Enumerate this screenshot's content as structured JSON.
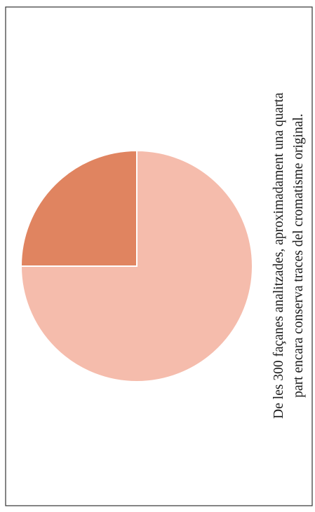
{
  "chart_data": {
    "type": "pie",
    "categories": [
      null,
      null
    ],
    "values": [
      25,
      75
    ],
    "colors": [
      "#e08460",
      "#f5bcac"
    ],
    "caption_lines": [
      "De les 300 façanes analitzades, aproximadament una quarta",
      "part encara conserva traces del cromatisme original."
    ]
  }
}
